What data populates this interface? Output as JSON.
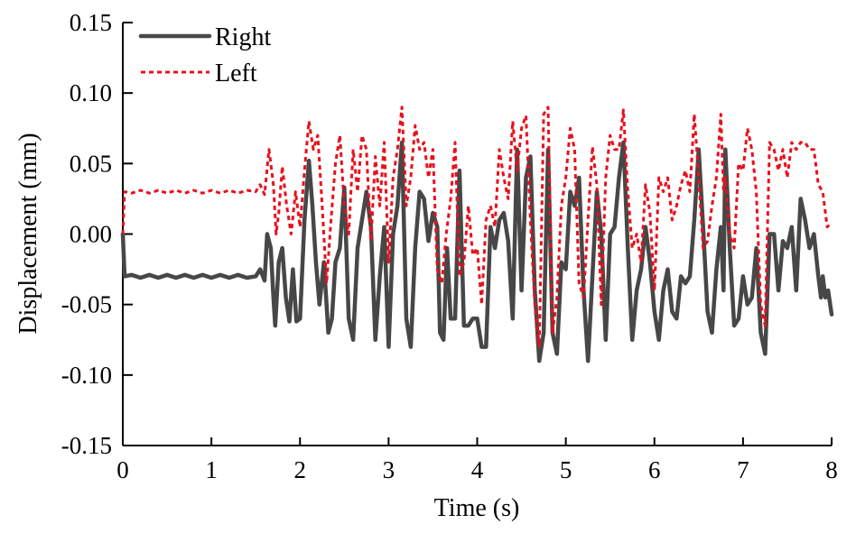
{
  "chart_data": {
    "type": "line",
    "title": "",
    "xlabel": "Time (s)",
    "ylabel": "Displacement (mm)",
    "xlim": [
      0,
      8
    ],
    "ylim": [
      -0.15,
      0.15
    ],
    "xticks": [
      0,
      1,
      2,
      3,
      4,
      5,
      6,
      7,
      8
    ],
    "xtick_labels": [
      "0",
      "1",
      "2",
      "3",
      "4",
      "5",
      "6",
      "7",
      "8"
    ],
    "yticks": [
      0.15,
      0.1,
      0.05,
      0.0,
      -0.05,
      -0.1,
      -0.15
    ],
    "ytick_labels": [
      "0.15",
      "0.10",
      "0.05",
      "0.00",
      "-0.05",
      "-0.10",
      "-0.15"
    ],
    "grid": false,
    "legend_position": "top-left",
    "series": [
      {
        "name": "Right",
        "color": "#474747",
        "style": "solid",
        "points": [
          [
            0.0,
            0.0
          ],
          [
            0.02,
            -0.03
          ],
          [
            0.1,
            -0.029
          ],
          [
            0.2,
            -0.031
          ],
          [
            0.3,
            -0.029
          ],
          [
            0.4,
            -0.031
          ],
          [
            0.5,
            -0.029
          ],
          [
            0.6,
            -0.031
          ],
          [
            0.7,
            -0.029
          ],
          [
            0.8,
            -0.031
          ],
          [
            0.9,
            -0.029
          ],
          [
            1.0,
            -0.031
          ],
          [
            1.1,
            -0.029
          ],
          [
            1.2,
            -0.031
          ],
          [
            1.3,
            -0.029
          ],
          [
            1.4,
            -0.031
          ],
          [
            1.5,
            -0.03
          ],
          [
            1.55,
            -0.025
          ],
          [
            1.6,
            -0.033
          ],
          [
            1.63,
            0.0
          ],
          [
            1.67,
            -0.01
          ],
          [
            1.7,
            -0.045
          ],
          [
            1.72,
            -0.065
          ],
          [
            1.76,
            -0.02
          ],
          [
            1.8,
            -0.01
          ],
          [
            1.84,
            -0.045
          ],
          [
            1.88,
            -0.062
          ],
          [
            1.92,
            -0.025
          ],
          [
            1.96,
            -0.062
          ],
          [
            2.0,
            -0.06
          ],
          [
            2.05,
            0.01
          ],
          [
            2.1,
            0.052
          ],
          [
            2.14,
            0.02
          ],
          [
            2.18,
            -0.02
          ],
          [
            2.22,
            -0.05
          ],
          [
            2.27,
            -0.02
          ],
          [
            2.32,
            -0.07
          ],
          [
            2.36,
            -0.06
          ],
          [
            2.4,
            -0.02
          ],
          [
            2.45,
            -0.01
          ],
          [
            2.5,
            0.033
          ],
          [
            2.55,
            -0.06
          ],
          [
            2.6,
            -0.075
          ],
          [
            2.65,
            -0.01
          ],
          [
            2.7,
            0.01
          ],
          [
            2.75,
            0.03
          ],
          [
            2.8,
            0.005
          ],
          [
            2.85,
            -0.075
          ],
          [
            2.9,
            -0.03
          ],
          [
            2.95,
            0.005
          ],
          [
            3.0,
            -0.08
          ],
          [
            3.05,
            0.0
          ],
          [
            3.1,
            0.02
          ],
          [
            3.15,
            0.065
          ],
          [
            3.2,
            -0.06
          ],
          [
            3.25,
            -0.08
          ],
          [
            3.3,
            -0.01
          ],
          [
            3.35,
            0.03
          ],
          [
            3.4,
            0.025
          ],
          [
            3.45,
            -0.005
          ],
          [
            3.5,
            0.015
          ],
          [
            3.55,
            0.005
          ],
          [
            3.58,
            -0.07
          ],
          [
            3.62,
            -0.075
          ],
          [
            3.66,
            -0.01
          ],
          [
            3.7,
            -0.06
          ],
          [
            3.75,
            -0.06
          ],
          [
            3.8,
            0.045
          ],
          [
            3.85,
            -0.065
          ],
          [
            3.9,
            -0.065
          ],
          [
            3.95,
            -0.06
          ],
          [
            4.0,
            -0.06
          ],
          [
            4.05,
            -0.08
          ],
          [
            4.1,
            -0.08
          ],
          [
            4.15,
            0.005
          ],
          [
            4.2,
            -0.01
          ],
          [
            4.25,
            0.01
          ],
          [
            4.3,
            0.015
          ],
          [
            4.35,
            -0.005
          ],
          [
            4.4,
            -0.06
          ],
          [
            4.45,
            0.06
          ],
          [
            4.5,
            -0.04
          ],
          [
            4.55,
            0.04
          ],
          [
            4.6,
            0.055
          ],
          [
            4.65,
            -0.04
          ],
          [
            4.7,
            -0.09
          ],
          [
            4.75,
            -0.07
          ],
          [
            4.8,
            0.06
          ],
          [
            4.85,
            -0.07
          ],
          [
            4.9,
            -0.085
          ],
          [
            4.95,
            -0.02
          ],
          [
            5.0,
            -0.025
          ],
          [
            5.05,
            0.03
          ],
          [
            5.1,
            0.02
          ],
          [
            5.15,
            0.04
          ],
          [
            5.2,
            -0.04
          ],
          [
            5.25,
            -0.09
          ],
          [
            5.3,
            -0.03
          ],
          [
            5.35,
            0.03
          ],
          [
            5.4,
            0.0
          ],
          [
            5.45,
            -0.075
          ],
          [
            5.5,
            0.0
          ],
          [
            5.55,
            0.005
          ],
          [
            5.6,
            0.04
          ],
          [
            5.65,
            0.065
          ],
          [
            5.7,
            -0.01
          ],
          [
            5.75,
            -0.075
          ],
          [
            5.8,
            -0.04
          ],
          [
            5.85,
            -0.025
          ],
          [
            5.9,
            0.005
          ],
          [
            5.95,
            -0.02
          ],
          [
            6.0,
            -0.055
          ],
          [
            6.05,
            -0.075
          ],
          [
            6.1,
            -0.04
          ],
          [
            6.15,
            -0.025
          ],
          [
            6.2,
            -0.055
          ],
          [
            6.25,
            -0.06
          ],
          [
            6.3,
            -0.03
          ],
          [
            6.35,
            -0.035
          ],
          [
            6.4,
            -0.03
          ],
          [
            6.45,
            0.01
          ],
          [
            6.5,
            0.06
          ],
          [
            6.55,
            0.005
          ],
          [
            6.6,
            -0.055
          ],
          [
            6.65,
            -0.07
          ],
          [
            6.7,
            -0.025
          ],
          [
            6.75,
            0.005
          ],
          [
            6.78,
            -0.04
          ],
          [
            6.8,
            0.06
          ],
          [
            6.85,
            -0.01
          ],
          [
            6.9,
            -0.065
          ],
          [
            6.95,
            -0.06
          ],
          [
            7.0,
            -0.03
          ],
          [
            7.05,
            -0.05
          ],
          [
            7.1,
            -0.045
          ],
          [
            7.15,
            -0.01
          ],
          [
            7.2,
            -0.07
          ],
          [
            7.25,
            -0.085
          ],
          [
            7.3,
            0.0
          ],
          [
            7.35,
            0.0
          ],
          [
            7.4,
            -0.04
          ],
          [
            7.45,
            -0.005
          ],
          [
            7.5,
            -0.01
          ],
          [
            7.55,
            0.005
          ],
          [
            7.6,
            -0.04
          ],
          [
            7.65,
            0.025
          ],
          [
            7.7,
            0.01
          ],
          [
            7.75,
            -0.01
          ],
          [
            7.8,
            0.0
          ],
          [
            7.85,
            -0.03
          ],
          [
            7.88,
            -0.045
          ],
          [
            7.9,
            -0.03
          ],
          [
            7.93,
            -0.045
          ],
          [
            7.96,
            -0.04
          ],
          [
            8.0,
            -0.057
          ]
        ]
      },
      {
        "name": "Left",
        "color": "#e8101c",
        "style": "dotted",
        "points": [
          [
            0.0,
            0.0
          ],
          [
            0.02,
            0.03
          ],
          [
            0.1,
            0.029
          ],
          [
            0.2,
            0.031
          ],
          [
            0.3,
            0.029
          ],
          [
            0.4,
            0.031
          ],
          [
            0.5,
            0.029
          ],
          [
            0.6,
            0.031
          ],
          [
            0.7,
            0.029
          ],
          [
            0.8,
            0.031
          ],
          [
            0.9,
            0.029
          ],
          [
            1.0,
            0.031
          ],
          [
            1.1,
            0.029
          ],
          [
            1.2,
            0.031
          ],
          [
            1.3,
            0.029
          ],
          [
            1.4,
            0.031
          ],
          [
            1.5,
            0.03
          ],
          [
            1.55,
            0.035
          ],
          [
            1.6,
            0.028
          ],
          [
            1.65,
            0.06
          ],
          [
            1.7,
            0.035
          ],
          [
            1.73,
            0.0
          ],
          [
            1.76,
            0.015
          ],
          [
            1.8,
            0.048
          ],
          [
            1.85,
            0.02
          ],
          [
            1.9,
            0.0
          ],
          [
            1.95,
            0.03
          ],
          [
            2.0,
            0.005
          ],
          [
            2.05,
            0.045
          ],
          [
            2.1,
            0.08
          ],
          [
            2.15,
            0.06
          ],
          [
            2.2,
            0.07
          ],
          [
            2.25,
            0.02
          ],
          [
            2.3,
            -0.035
          ],
          [
            2.35,
            0.01
          ],
          [
            2.4,
            0.05
          ],
          [
            2.45,
            0.07
          ],
          [
            2.5,
            0.02
          ],
          [
            2.55,
            0.0
          ],
          [
            2.6,
            0.06
          ],
          [
            2.65,
            0.03
          ],
          [
            2.7,
            0.07
          ],
          [
            2.75,
            0.06
          ],
          [
            2.8,
            -0.005
          ],
          [
            2.85,
            0.055
          ],
          [
            2.9,
            0.02
          ],
          [
            2.95,
            0.065
          ],
          [
            3.0,
            -0.02
          ],
          [
            3.05,
            0.04
          ],
          [
            3.1,
            0.06
          ],
          [
            3.15,
            0.09
          ],
          [
            3.2,
            0.02
          ],
          [
            3.25,
            0.04
          ],
          [
            3.3,
            0.077
          ],
          [
            3.35,
            0.06
          ],
          [
            3.4,
            0.065
          ],
          [
            3.45,
            0.04
          ],
          [
            3.5,
            0.06
          ],
          [
            3.55,
            -0.025
          ],
          [
            3.6,
            -0.035
          ],
          [
            3.65,
            0.0
          ],
          [
            3.7,
            0.025
          ],
          [
            3.75,
            0.065
          ],
          [
            3.8,
            -0.03
          ],
          [
            3.85,
            -0.02
          ],
          [
            3.9,
            0.02
          ],
          [
            3.95,
            -0.015
          ],
          [
            4.0,
            -0.01
          ],
          [
            4.05,
            -0.05
          ],
          [
            4.1,
            0.01
          ],
          [
            4.15,
            0.02
          ],
          [
            4.2,
            0.005
          ],
          [
            4.25,
            0.06
          ],
          [
            4.3,
            0.04
          ],
          [
            4.35,
            0.025
          ],
          [
            4.4,
            0.08
          ],
          [
            4.45,
            0.045
          ],
          [
            4.5,
            0.075
          ],
          [
            4.55,
            0.084
          ],
          [
            4.6,
            0.01
          ],
          [
            4.65,
            -0.05
          ],
          [
            4.7,
            -0.08
          ],
          [
            4.75,
            0.085
          ],
          [
            4.8,
            0.09
          ],
          [
            4.85,
            -0.07
          ],
          [
            4.9,
            -0.045
          ],
          [
            4.95,
            0.02
          ],
          [
            5.0,
            0.04
          ],
          [
            5.05,
            0.075
          ],
          [
            5.1,
            0.06
          ],
          [
            5.15,
            -0.035
          ],
          [
            5.2,
            -0.045
          ],
          [
            5.25,
            0.01
          ],
          [
            5.3,
            0.062
          ],
          [
            5.35,
            0.035
          ],
          [
            5.4,
            -0.05
          ],
          [
            5.45,
            0.04
          ],
          [
            5.5,
            0.07
          ],
          [
            5.55,
            0.06
          ],
          [
            5.6,
            0.06
          ],
          [
            5.65,
            0.088
          ],
          [
            5.7,
            0.03
          ],
          [
            5.75,
            -0.01
          ],
          [
            5.8,
            0.0
          ],
          [
            5.85,
            -0.02
          ],
          [
            5.9,
            0.035
          ],
          [
            5.95,
            0.015
          ],
          [
            6.0,
            -0.04
          ],
          [
            6.05,
            0.04
          ],
          [
            6.1,
            0.03
          ],
          [
            6.15,
            0.04
          ],
          [
            6.2,
            0.01
          ],
          [
            6.25,
            0.02
          ],
          [
            6.3,
            0.035
          ],
          [
            6.35,
            0.045
          ],
          [
            6.4,
            0.03
          ],
          [
            6.45,
            0.085
          ],
          [
            6.5,
            0.04
          ],
          [
            6.55,
            -0.01
          ],
          [
            6.6,
            -0.005
          ],
          [
            6.65,
            0.02
          ],
          [
            6.7,
            0.04
          ],
          [
            6.75,
            0.085
          ],
          [
            6.78,
            0.03
          ],
          [
            6.8,
            0.04
          ],
          [
            6.85,
            0.0
          ],
          [
            6.9,
            -0.01
          ],
          [
            6.95,
            0.05
          ],
          [
            7.0,
            0.045
          ],
          [
            7.05,
            0.075
          ],
          [
            7.1,
            0.06
          ],
          [
            7.15,
            0.03
          ],
          [
            7.2,
            -0.05
          ],
          [
            7.25,
            -0.065
          ],
          [
            7.3,
            0.065
          ],
          [
            7.35,
            0.06
          ],
          [
            7.4,
            0.045
          ],
          [
            7.45,
            0.06
          ],
          [
            7.5,
            0.04
          ],
          [
            7.55,
            0.065
          ],
          [
            7.6,
            0.06
          ],
          [
            7.65,
            0.065
          ],
          [
            7.7,
            0.065
          ],
          [
            7.75,
            0.06
          ],
          [
            7.8,
            0.06
          ],
          [
            7.85,
            0.035
          ],
          [
            7.9,
            0.03
          ],
          [
            7.95,
            0.005
          ],
          [
            8.0,
            0.008
          ]
        ]
      }
    ]
  }
}
